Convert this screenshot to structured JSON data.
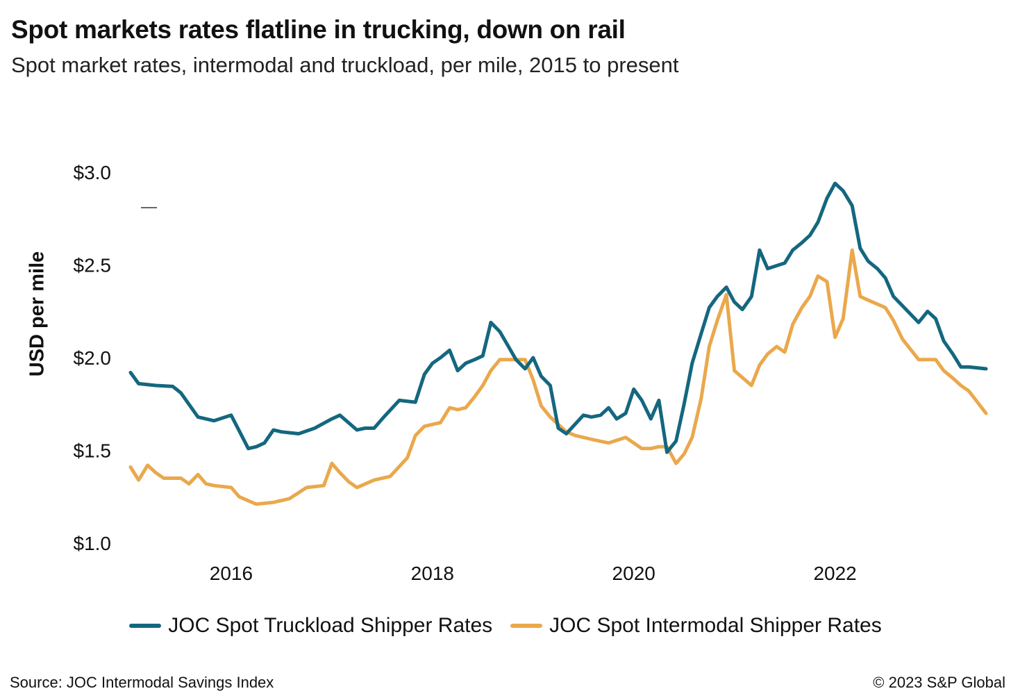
{
  "header": {
    "title": "Spot markets rates flatline in trucking, down on rail",
    "subtitle": "Spot market rates, intermodal and truckload, per mile, 2015 to present"
  },
  "footer": {
    "source": "Source: JOC Intermodal Savings Index",
    "copyright": "© 2023 S&P Global"
  },
  "chart_data": {
    "type": "line",
    "title": "Spot markets rates flatline in trucking, down on rail",
    "subtitle": "Spot market rates, intermodal and truckload, per mile, 2015 to present",
    "xlabel": "",
    "ylabel": "USD per mile",
    "xlim": [
      2015.0,
      2023.5
    ],
    "ylim": [
      1.0,
      3.0
    ],
    "y_ticks": [
      1.0,
      1.5,
      2.0,
      2.5,
      3.0
    ],
    "y_tick_labels": [
      "$1.0",
      "$1.5",
      "$2.0",
      "$2.5",
      "$3.0"
    ],
    "x_ticks": [
      2016,
      2018,
      2020,
      2022
    ],
    "x_tick_labels": [
      "2016",
      "2018",
      "2020",
      "2022"
    ],
    "grid": false,
    "legend_position": "bottom",
    "series": [
      {
        "name": "JOC Spot Truckload Shipper Rates",
        "color": "#14677f",
        "x": [
          2015.0,
          2015.08,
          2015.25,
          2015.42,
          2015.5,
          2015.67,
          2015.83,
          2016.0,
          2016.17,
          2016.25,
          2016.33,
          2016.42,
          2016.5,
          2016.67,
          2016.83,
          2017.0,
          2017.08,
          2017.25,
          2017.33,
          2017.42,
          2017.5,
          2017.67,
          2017.83,
          2017.92,
          2018.0,
          2018.08,
          2018.17,
          2018.25,
          2018.33,
          2018.42,
          2018.5,
          2018.58,
          2018.67,
          2018.83,
          2018.92,
          2019.0,
          2019.08,
          2019.17,
          2019.25,
          2019.33,
          2019.5,
          2019.58,
          2019.67,
          2019.75,
          2019.83,
          2019.92,
          2020.0,
          2020.08,
          2020.17,
          2020.25,
          2020.33,
          2020.42,
          2020.5,
          2020.58,
          2020.67,
          2020.75,
          2020.83,
          2020.92,
          2021.0,
          2021.08,
          2021.17,
          2021.25,
          2021.33,
          2021.5,
          2021.58,
          2021.67,
          2021.75,
          2021.83,
          2021.92,
          2022.0,
          2022.08,
          2022.17,
          2022.25,
          2022.33,
          2022.42,
          2022.5,
          2022.58,
          2022.67,
          2022.83,
          2022.92,
          2023.0,
          2023.08,
          2023.17,
          2023.25,
          2023.33,
          2023.5
        ],
        "values": [
          1.92,
          1.86,
          1.85,
          1.845,
          1.81,
          1.68,
          1.66,
          1.69,
          1.51,
          1.52,
          1.54,
          1.61,
          1.6,
          1.59,
          1.62,
          1.67,
          1.69,
          1.61,
          1.62,
          1.62,
          1.67,
          1.77,
          1.76,
          1.91,
          1.97,
          2.0,
          2.04,
          1.93,
          1.97,
          1.99,
          2.01,
          2.19,
          2.14,
          1.99,
          1.94,
          2.0,
          1.9,
          1.85,
          1.62,
          1.59,
          1.69,
          1.68,
          1.69,
          1.73,
          1.67,
          1.7,
          1.83,
          1.77,
          1.67,
          1.77,
          1.49,
          1.55,
          1.75,
          1.97,
          2.13,
          2.27,
          2.33,
          2.38,
          2.3,
          2.26,
          2.33,
          2.58,
          2.48,
          2.51,
          2.58,
          2.62,
          2.66,
          2.73,
          2.86,
          2.94,
          2.9,
          2.82,
          2.59,
          2.52,
          2.48,
          2.43,
          2.33,
          2.28,
          2.19,
          2.25,
          2.21,
          2.09,
          2.02,
          1.95,
          1.95,
          1.94
        ]
      },
      {
        "name": "JOC Spot Intermodal Shipper Rates",
        "color": "#eaa84c",
        "x": [
          2015.0,
          2015.08,
          2015.17,
          2015.25,
          2015.33,
          2015.5,
          2015.58,
          2015.67,
          2015.75,
          2015.83,
          2016.0,
          2016.08,
          2016.25,
          2016.42,
          2016.58,
          2016.75,
          2016.92,
          2017.0,
          2017.08,
          2017.17,
          2017.25,
          2017.42,
          2017.58,
          2017.75,
          2017.83,
          2017.92,
          2018.0,
          2018.08,
          2018.17,
          2018.25,
          2018.33,
          2018.42,
          2018.5,
          2018.58,
          2018.67,
          2018.75,
          2018.92,
          2019.0,
          2019.08,
          2019.17,
          2019.33,
          2019.42,
          2019.58,
          2019.75,
          2019.92,
          2020.0,
          2020.08,
          2020.17,
          2020.25,
          2020.33,
          2020.42,
          2020.5,
          2020.58,
          2020.67,
          2020.75,
          2020.83,
          2020.92,
          2021.0,
          2021.17,
          2021.25,
          2021.33,
          2021.42,
          2021.5,
          2021.58,
          2021.67,
          2021.75,
          2021.83,
          2021.92,
          2022.0,
          2022.08,
          2022.17,
          2022.25,
          2022.33,
          2022.5,
          2022.58,
          2022.67,
          2022.83,
          2022.92,
          2023.0,
          2023.08,
          2023.17,
          2023.25,
          2023.33,
          2023.5
        ],
        "values": [
          1.41,
          1.34,
          1.42,
          1.38,
          1.35,
          1.35,
          1.32,
          1.37,
          1.32,
          1.31,
          1.3,
          1.25,
          1.21,
          1.22,
          1.24,
          1.3,
          1.31,
          1.43,
          1.38,
          1.33,
          1.3,
          1.34,
          1.36,
          1.46,
          1.58,
          1.63,
          1.64,
          1.65,
          1.73,
          1.72,
          1.73,
          1.79,
          1.85,
          1.93,
          1.99,
          1.99,
          1.99,
          1.88,
          1.74,
          1.68,
          1.6,
          1.58,
          1.56,
          1.54,
          1.57,
          1.54,
          1.51,
          1.51,
          1.52,
          1.52,
          1.43,
          1.48,
          1.57,
          1.78,
          2.06,
          2.2,
          2.34,
          1.93,
          1.85,
          1.96,
          2.02,
          2.06,
          2.03,
          2.18,
          2.27,
          2.33,
          2.44,
          2.41,
          2.11,
          2.21,
          2.58,
          2.33,
          2.31,
          2.27,
          2.2,
          2.1,
          1.99,
          1.99,
          1.99,
          1.93,
          1.89,
          1.85,
          1.82,
          1.7
        ]
      }
    ]
  }
}
